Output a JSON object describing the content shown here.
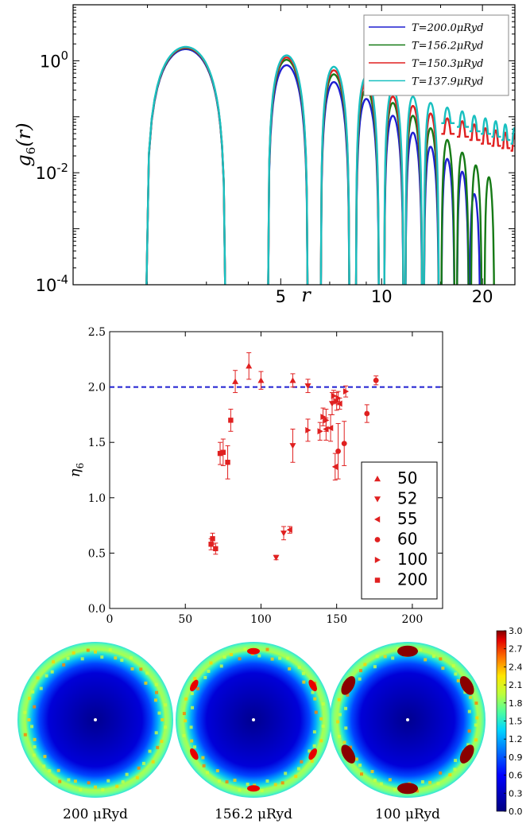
{
  "chart_data": [
    {
      "type": "line",
      "ylabel": "g6(r)",
      "xlabel": "r",
      "yscale": "log",
      "xlim": [
        1.2,
        25
      ],
      "ylim": [
        0.0001,
        10
      ],
      "x_ticks": [
        "5",
        "10",
        "20"
      ],
      "y_ticks": [
        "10^0",
        "10^-2",
        "10^-4"
      ],
      "legend": {
        "placement": "top-right"
      },
      "series": [
        {
          "name": "T=200.0μRyd",
          "color": "#1f1fd1",
          "peaks": [
            [
              2.7,
              1.55
            ],
            [
              5.3,
              0.8
            ],
            [
              7.3,
              0.4
            ],
            [
              9.1,
              0.2
            ],
            [
              10.9,
              0.1
            ],
            [
              12.5,
              0.05
            ],
            [
              14.1,
              0.028
            ],
            [
              15.8,
              0.017
            ],
            [
              17.5,
              0.01
            ],
            [
              19.0,
              0.004
            ]
          ]
        },
        {
          "name": "T=156.2μRyd",
          "color": "#167a16",
          "peaks": [
            [
              2.7,
              1.62
            ],
            [
              5.3,
              1.0
            ],
            [
              7.3,
              0.55
            ],
            [
              9.1,
              0.3
            ],
            [
              10.9,
              0.17
            ],
            [
              12.5,
              0.1
            ],
            [
              14.1,
              0.06
            ],
            [
              15.8,
              0.037
            ],
            [
              17.5,
              0.022
            ],
            [
              19.2,
              0.013
            ],
            [
              21.0,
              0.008
            ]
          ]
        },
        {
          "name": "T=150.3μRyd",
          "color": "#e02020",
          "peaks": [
            [
              2.7,
              1.65
            ],
            [
              5.3,
              1.1
            ],
            [
              7.3,
              0.65
            ],
            [
              9.1,
              0.4
            ],
            [
              10.9,
              0.22
            ],
            [
              12.5,
              0.15
            ],
            [
              14.1,
              0.11
            ],
            [
              15.8,
              0.09
            ],
            [
              17.5,
              0.08
            ],
            [
              19.0,
              0.07
            ],
            [
              20.5,
              0.06
            ],
            [
              22.0,
              0.055
            ],
            [
              23.5,
              0.05
            ],
            [
              25.0,
              0.045
            ]
          ]
        },
        {
          "name": "T=137.9μRyd",
          "color": "#19c0c0",
          "peaks": [
            [
              2.7,
              1.7
            ],
            [
              5.3,
              1.2
            ],
            [
              7.3,
              0.75
            ],
            [
              9.1,
              0.5
            ],
            [
              10.9,
              0.3
            ],
            [
              12.5,
              0.22
            ],
            [
              14.1,
              0.17
            ],
            [
              15.8,
              0.14
            ],
            [
              17.5,
              0.12
            ],
            [
              19.0,
              0.1
            ],
            [
              20.5,
              0.09
            ],
            [
              22.0,
              0.08
            ],
            [
              23.5,
              0.07
            ],
            [
              25.0,
              0.06
            ]
          ]
        }
      ]
    },
    {
      "type": "scatter",
      "xlabel": "T(μRyd)",
      "ylabel": "η6",
      "xlim": [
        0,
        220
      ],
      "ylim": [
        0.0,
        2.5
      ],
      "x_ticks": [
        "0",
        "50",
        "100",
        "150",
        "200"
      ],
      "y_ticks": [
        "0.0",
        "0.5",
        "1.0",
        "1.5",
        "2.0",
        "2.5"
      ],
      "reference_line": {
        "y": 2.0,
        "color": "#1f1fd1",
        "style": "dashed"
      },
      "legend": {
        "placement": "lower-right"
      },
      "marker_color": "#e02020",
      "series": [
        {
          "name": "50",
          "marker": "triangle-up",
          "points": [
            [
              83,
              2.05,
              0.1
            ],
            [
              92,
              2.19,
              0.12
            ],
            [
              100,
              2.06,
              0.08
            ],
            [
              121,
              2.06,
              0.06
            ]
          ]
        },
        {
          "name": "52",
          "marker": "triangle-down",
          "points": [
            [
              110,
              0.46,
              0.02
            ],
            [
              115,
              0.68,
              0.06
            ],
            [
              121,
              1.47,
              0.15
            ],
            [
              131,
              2.01,
              0.06
            ],
            [
              147,
              1.85,
              0.1
            ]
          ]
        },
        {
          "name": "55",
          "marker": "triangle-left",
          "points": [
            [
              119,
              0.71,
              0.03
            ],
            [
              143,
              1.62,
              0.1
            ],
            [
              146,
              1.63,
              0.12
            ],
            [
              149,
              1.28,
              0.12
            ],
            [
              152,
              1.85,
              0.05
            ]
          ]
        },
        {
          "name": "60",
          "marker": "circle",
          "points": [
            [
              151,
              1.42,
              0.25
            ],
            [
              155,
              1.49,
              0.2
            ],
            [
              170,
              1.76,
              0.08
            ],
            [
              176,
              2.06,
              0.04
            ]
          ]
        },
        {
          "name": "100",
          "marker": "triangle-right",
          "points": [
            [
              131,
              1.61,
              0.1
            ],
            [
              139,
              1.6,
              0.08
            ],
            [
              141,
              1.73,
              0.08
            ],
            [
              143,
              1.7,
              0.1
            ],
            [
              148,
              1.92,
              0.05
            ],
            [
              150,
              1.87,
              0.08
            ],
            [
              151,
              1.9,
              0.06
            ],
            [
              156,
              1.96,
              0.05
            ]
          ]
        },
        {
          "name": "200",
          "marker": "square",
          "points": [
            [
              67,
              0.58,
              0.05
            ],
            [
              68,
              0.63,
              0.05
            ],
            [
              70,
              0.54,
              0.05
            ],
            [
              73,
              1.4,
              0.1
            ],
            [
              75,
              1.41,
              0.12
            ],
            [
              78,
              1.32,
              0.15
            ],
            [
              80,
              1.7,
              0.1
            ]
          ]
        }
      ]
    },
    {
      "type": "heatmap",
      "colorbar": {
        "min": 0.0,
        "max": 3.0,
        "ticks": [
          "3.0",
          "2.7",
          "2.4",
          "2.1",
          "1.8",
          "1.5",
          "1.2",
          "0.9",
          "0.6",
          "0.3",
          "0.0"
        ]
      },
      "panels": [
        {
          "label": "200 μRyd",
          "hotspots": 0
        },
        {
          "label": "156.2 μRyd",
          "hotspots": 6
        },
        {
          "label": "100 μRyd",
          "hotspots": 6
        }
      ]
    }
  ]
}
